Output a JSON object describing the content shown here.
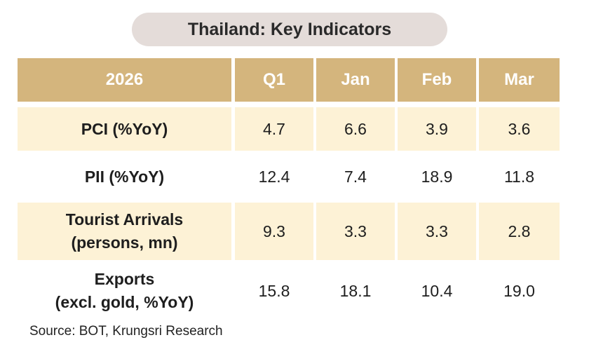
{
  "title": "Thailand: Key Indicators",
  "table": {
    "header": [
      "2026",
      "Q1",
      "Jan",
      "Feb",
      "Mar"
    ],
    "rows": [
      {
        "label": [
          "PCI (%YoY)"
        ],
        "values": [
          "4.7",
          "6.6",
          "3.9",
          "3.6"
        ]
      },
      {
        "label": [
          "PII (%YoY)"
        ],
        "values": [
          "12.4",
          "7.4",
          "18.9",
          "11.8"
        ]
      },
      {
        "label": [
          "Tourist Arrivals",
          "(persons, mn)"
        ],
        "values": [
          "9.3",
          "3.3",
          "3.3",
          "2.8"
        ]
      },
      {
        "label": [
          "Exports",
          "(excl. gold, %YoY)"
        ],
        "values": [
          "15.8",
          "18.1",
          "10.4",
          "19.0"
        ]
      }
    ]
  },
  "source": "Source: BOT, Krungsri Research"
}
